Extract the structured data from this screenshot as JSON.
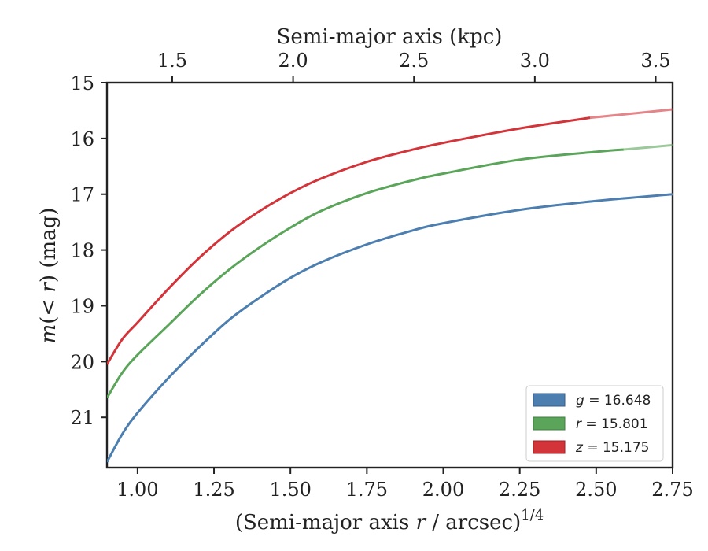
{
  "chart_data": {
    "type": "line",
    "xlabel_prefix": "(Semi-major axis ",
    "xlabel_var": "r",
    "xlabel_suffix": " / arcsec)",
    "xlabel_exp": "1/4",
    "ylabel_prefix": "m",
    "ylabel_mid": "(< ",
    "ylabel_var": "r",
    "ylabel_suffix": ") (mag)",
    "top_xlabel": "Semi-major axis (kpc)",
    "xlim": [
      0.9,
      2.75
    ],
    "ylim": [
      21.9,
      15
    ],
    "top_xlim": [
      1.23,
      3.57
    ],
    "x_ticks": [
      1.0,
      1.25,
      1.5,
      1.75,
      2.0,
      2.25,
      2.5,
      2.75
    ],
    "x_tick_labels": [
      "1.00",
      "1.25",
      "1.50",
      "1.75",
      "2.00",
      "2.25",
      "2.50",
      "2.75"
    ],
    "y_ticks": [
      15,
      16,
      17,
      18,
      19,
      20,
      21
    ],
    "y_tick_labels": [
      "15",
      "16",
      "17",
      "18",
      "19",
      "20",
      "21"
    ],
    "top_ticks": [
      1.5,
      2.0,
      2.5,
      3.0,
      3.5
    ],
    "top_tick_labels": [
      "1.5",
      "2.0",
      "2.5",
      "3.0",
      "3.5"
    ],
    "legend_position": "lower-right",
    "series": [
      {
        "name": "g",
        "value_label": " = 16.648",
        "color": "#4c7fb0",
        "fade_from": 2.75,
        "x": [
          0.9,
          0.95,
          1.0,
          1.1,
          1.2,
          1.3,
          1.4,
          1.5,
          1.6,
          1.75,
          1.9,
          2.0,
          2.25,
          2.5,
          2.75
        ],
        "y": [
          21.8,
          21.3,
          20.92,
          20.3,
          19.75,
          19.25,
          18.85,
          18.5,
          18.22,
          17.9,
          17.65,
          17.52,
          17.28,
          17.12,
          17.0
        ]
      },
      {
        "name": "r",
        "value_label": " = 15.801",
        "color": "#5aa55a",
        "fade_from": 2.59,
        "x": [
          0.9,
          0.95,
          1.0,
          1.1,
          1.2,
          1.3,
          1.4,
          1.5,
          1.6,
          1.75,
          1.9,
          2.0,
          2.25,
          2.5,
          2.59,
          2.75
        ],
        "y": [
          20.65,
          20.2,
          19.88,
          19.35,
          18.82,
          18.35,
          17.95,
          17.6,
          17.3,
          16.98,
          16.75,
          16.63,
          16.38,
          16.24,
          16.2,
          16.12
        ]
      },
      {
        "name": "z",
        "value_label": " = 15.175",
        "color": "#d2343a",
        "fade_from": 2.48,
        "x": [
          0.9,
          0.95,
          1.0,
          1.1,
          1.2,
          1.3,
          1.4,
          1.5,
          1.6,
          1.75,
          1.9,
          2.0,
          2.25,
          2.48,
          2.75
        ],
        "y": [
          20.05,
          19.6,
          19.3,
          18.7,
          18.15,
          17.68,
          17.3,
          16.98,
          16.72,
          16.42,
          16.2,
          16.08,
          15.82,
          15.63,
          15.48
        ]
      }
    ]
  }
}
